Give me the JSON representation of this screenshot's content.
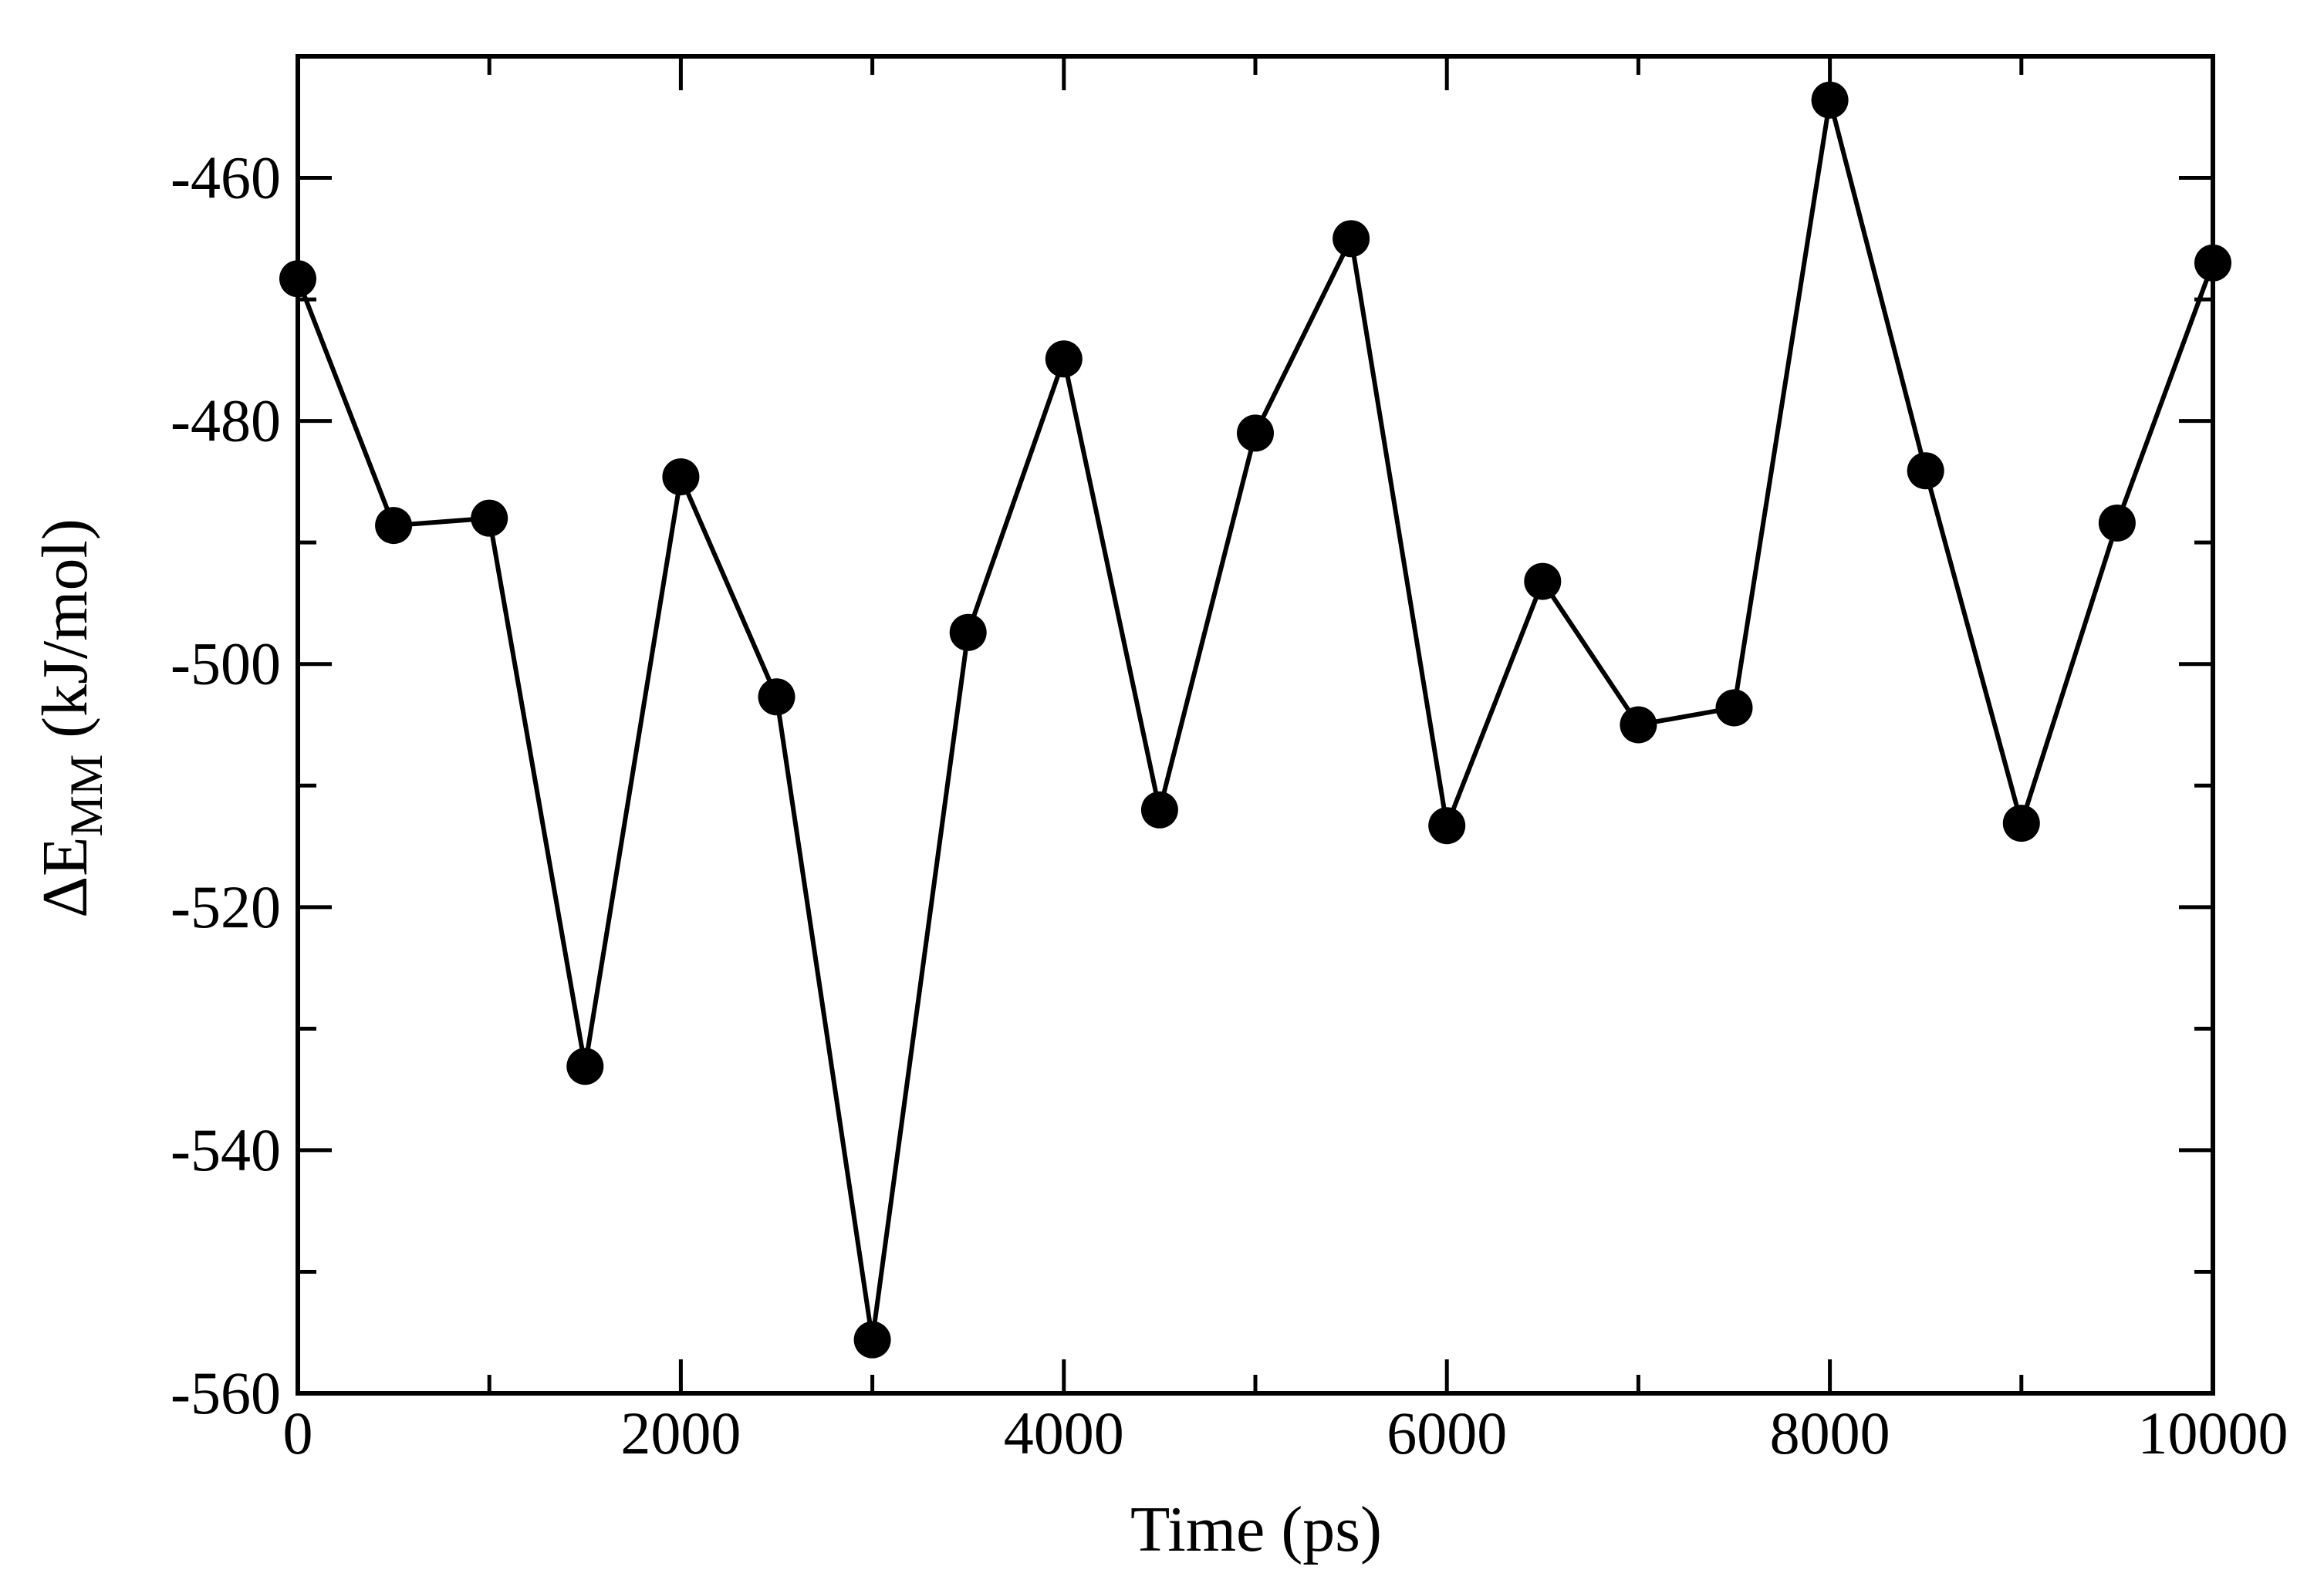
{
  "chart_data": {
    "type": "line",
    "xlabel": "Time (ps)",
    "ylabel": {
      "prefix": "ΔE",
      "subscript": "MM",
      "suffix": " (kJ/mol)"
    },
    "xlim": [
      0,
      10000
    ],
    "ylim": [
      -560,
      -450
    ],
    "x_ticks_major": [
      0,
      2000,
      4000,
      6000,
      8000,
      10000
    ],
    "x_tick_labels": [
      "0",
      "2000",
      "4000",
      "6000",
      "8000",
      "10000"
    ],
    "x_ticks_minor": [
      1000,
      3000,
      5000,
      7000,
      9000
    ],
    "y_ticks_major": [
      -560,
      -540,
      -520,
      -500,
      -480,
      -460
    ],
    "y_tick_labels": [
      "-560",
      "-540",
      "-520",
      "-500",
      "-480",
      "-460"
    ],
    "y_ticks_minor": [
      -550,
      -530,
      -510,
      -490,
      -470
    ],
    "grid": false,
    "marker": "filled-circle",
    "colors": {
      "line": "#000000",
      "marker": "#000000",
      "frame": "#000000"
    },
    "series": [
      {
        "x": [
          0,
          500,
          1000,
          1500,
          2000,
          2500,
          3000,
          3500,
          4000,
          4500,
          5000,
          5500,
          6000,
          6500,
          7000,
          7500,
          8000,
          8500,
          9000,
          9500,
          10000
        ],
        "y": [
          -468.3,
          -488.6,
          -488.0,
          -533.1,
          -484.6,
          -502.7,
          -555.6,
          -497.4,
          -474.9,
          -512.0,
          -481.0,
          -465.0,
          -513.3,
          -493.2,
          -505.0,
          -503.6,
          -453.6,
          -484.1,
          -513.1,
          -488.4,
          -467.0
        ]
      }
    ]
  }
}
